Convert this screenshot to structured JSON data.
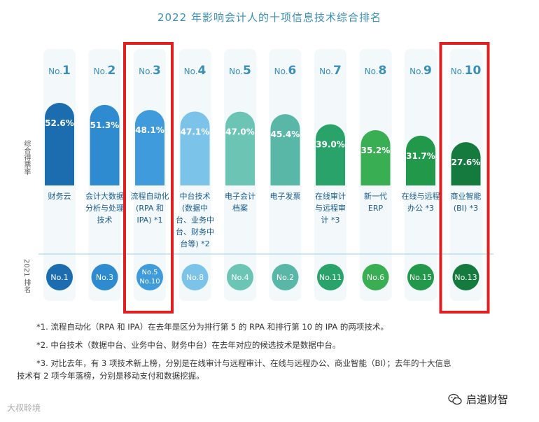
{
  "title": "2022 年影响会计人的十项信息技术综合排名",
  "ylabel": "综合得票率",
  "row2_label": "2021 排名",
  "colors": {
    "bars": [
      "#1c6db0",
      "#2f8bd0",
      "#3f9bdb",
      "#7cc3ea",
      "#6cc4b5",
      "#59b7a7",
      "#2aa36b",
      "#3aae52",
      "#22984a",
      "#147a3e"
    ],
    "circles": [
      "#1c6db0",
      "#2f8bd0",
      "#3f9bdb",
      "#7cc3ea",
      "#6cc4b5",
      "#59b7a7",
      "#2aa36b",
      "#3aae52",
      "#22984a",
      "#147a3e"
    ],
    "highlight": "#e02020",
    "rank_text": "#3a8fb7"
  },
  "chart_data": {
    "type": "bar",
    "title": "2022 年影响会计人的十项信息技术综合排名",
    "ylabel": "综合得票率",
    "ylim": [
      0,
      60
    ],
    "rank_prefix": "No.",
    "ranks": [
      "1",
      "2",
      "3",
      "4",
      "5",
      "6",
      "7",
      "8",
      "9",
      "10"
    ],
    "categories": [
      [
        "财务云"
      ],
      [
        "会计大数据",
        "分析与处理",
        "技术"
      ],
      [
        "流程自动化",
        "(RPA 和",
        "IPA) *1"
      ],
      [
        "中台技术",
        "(数据中",
        "台、业务中",
        "台、财务中",
        "台等) *2"
      ],
      [
        "电子会计",
        "档案"
      ],
      [
        "电子发票"
      ],
      [
        "在线审计",
        "与远程审",
        "计 *3"
      ],
      [
        "新一代",
        "ERP"
      ],
      [
        "在线与远程",
        "办公 *3"
      ],
      [
        "商业智能",
        "(BI) *3"
      ]
    ],
    "values": [
      52.6,
      51.3,
      48.1,
      47.1,
      47.0,
      45.4,
      39.0,
      35.2,
      31.7,
      27.6
    ],
    "value_labels": [
      "52.6%",
      "51.3%",
      "48.1%",
      "47.1%",
      "47.0%",
      "45.4%",
      "39.0%",
      "35.2%",
      "31.7%",
      "27.6%"
    ],
    "rank_2021": [
      [
        "No.1"
      ],
      [
        "No.3"
      ],
      [
        "No.5",
        "No.10"
      ],
      [
        "No.8"
      ],
      [
        "No.4"
      ],
      [
        "No.2"
      ],
      [
        "No.11"
      ],
      [
        "No.6"
      ],
      [
        "No.15"
      ],
      [
        "No.13"
      ]
    ],
    "highlighted": [
      3,
      10
    ]
  },
  "notes": [
    "*1. 流程自动化（RPA 和 IPA）在去年是区分为排行第 5 的 RPA 和排行第 10 的 IPA 的两项技术。",
    "*2. 中台技术（数据中台、业务中台、财务中台）在去年对应的候选技术是数据中台。",
    "*3. 对比去年，有 3 项技术新上榜，分别是在线审计与远程审计、在线与远程办公、商业智能（BI）；去年的十大信息",
    "技术有 2 项今年落榜，分别是移动支付和数据挖掘。"
  ],
  "watermark_left": "大叔聆境",
  "brand": "启道财智"
}
